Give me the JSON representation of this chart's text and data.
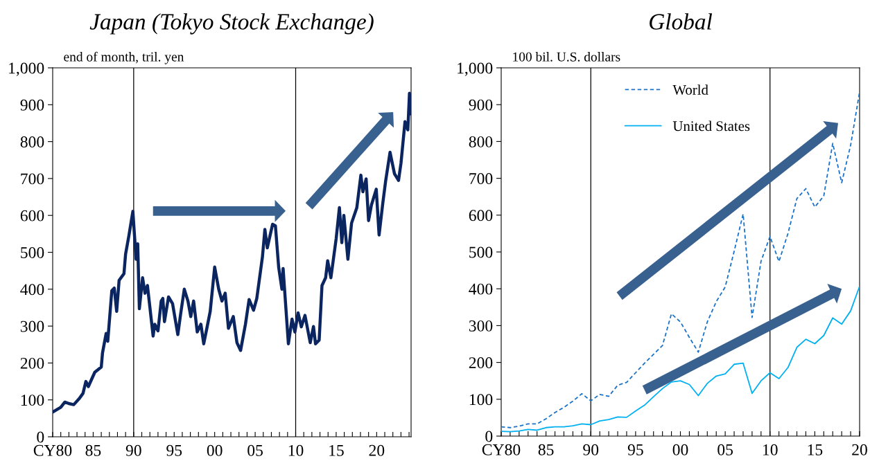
{
  "chart_data": [
    {
      "type": "line",
      "title": "Japan (Tokyo Stock Exchange)",
      "ylabel": "end of month, tril. yen",
      "series": [
        {
          "color": "#0b2560",
          "x": [
            1980.0,
            1981.0,
            1981.5,
            1982.0,
            1982.6,
            1983.3,
            1983.75,
            1984.1,
            1984.4,
            1985.2,
            1986.0,
            1986.15,
            1986.6,
            1986.8,
            1987.3,
            1987.6,
            1987.9,
            1988.2,
            1988.8,
            1989.0,
            1989.4,
            1989.9,
            1990.3,
            1990.5,
            1990.7,
            1991.1,
            1991.4,
            1991.7,
            1992.4,
            1992.6,
            1993.0,
            1993.4,
            1993.6,
            1993.8,
            1994.3,
            1994.8,
            1995.45,
            1995.8,
            1996.25,
            1996.7,
            1997.05,
            1997.4,
            1997.85,
            1998.3,
            1998.65,
            1998.97,
            1999.45,
            2000.0,
            2000.5,
            2000.9,
            2001.3,
            2001.7,
            2002.3,
            2002.75,
            2003.2,
            2003.8,
            2004.25,
            2004.8,
            2005.2,
            2005.9,
            2006.2,
            2006.5,
            2007.15,
            2007.5,
            2007.9,
            2008.3,
            2008.45,
            2009.1,
            2009.55,
            2009.9,
            2010.3,
            2010.7,
            2011.15,
            2011.8,
            2012.2,
            2012.45,
            2012.9,
            2013.25,
            2013.7,
            2013.95,
            2014.35,
            2015.0,
            2015.4,
            2015.7,
            2015.95,
            2016.45,
            2016.9,
            2017.55,
            2018.05,
            2018.3,
            2018.7,
            2019.0,
            2019.35,
            2019.95,
            2020.3,
            2020.75,
            2021.1,
            2021.65,
            2022.2,
            2022.7,
            2023.0,
            2023.5,
            2023.85,
            2024.05,
            2024.15
          ],
          "values": [
            67,
            80,
            94,
            90,
            87,
            104,
            118,
            150,
            136,
            175,
            189,
            227,
            280,
            259,
            396,
            403,
            340,
            424,
            442,
            495,
            544,
            611,
            481,
            523,
            347,
            431,
            389,
            410,
            273,
            305,
            287,
            368,
            375,
            312,
            379,
            361,
            277,
            333,
            400,
            368,
            326,
            368,
            284,
            305,
            252,
            287,
            340,
            460,
            400,
            368,
            389,
            294,
            326,
            255,
            234,
            305,
            372,
            343,
            375,
            488,
            562,
            512,
            576,
            572,
            460,
            400,
            456,
            252,
            319,
            284,
            336,
            298,
            329,
            255,
            299,
            252,
            262,
            410,
            431,
            477,
            431,
            537,
            621,
            526,
            600,
            481,
            579,
            621,
            709,
            664,
            699,
            586,
            628,
            671,
            547,
            632,
            692,
            771,
            713,
            695,
            741,
            854,
            832,
            931,
            875
          ]
        }
      ],
      "xlim": [
        1980,
        2024.25
      ],
      "xticks": [
        {
          "value": 1980,
          "label": "CY80"
        },
        {
          "value": 1981,
          "label": null
        },
        {
          "value": 1982,
          "label": null
        },
        {
          "value": 1983,
          "label": null
        },
        {
          "value": 1984,
          "label": null
        },
        {
          "value": 1985,
          "label": "85"
        },
        {
          "value": 1986,
          "label": null
        },
        {
          "value": 1987,
          "label": null
        },
        {
          "value": 1988,
          "label": null
        },
        {
          "value": 1989,
          "label": null
        },
        {
          "value": 1990,
          "label": "90"
        },
        {
          "value": 1991,
          "label": null
        },
        {
          "value": 1992,
          "label": null
        },
        {
          "value": 1993,
          "label": null
        },
        {
          "value": 1994,
          "label": null
        },
        {
          "value": 1995,
          "label": "95"
        },
        {
          "value": 1996,
          "label": null
        },
        {
          "value": 1997,
          "label": null
        },
        {
          "value": 1998,
          "label": null
        },
        {
          "value": 1999,
          "label": null
        },
        {
          "value": 2000,
          "label": "00"
        },
        {
          "value": 2001,
          "label": null
        },
        {
          "value": 2002,
          "label": null
        },
        {
          "value": 2003,
          "label": null
        },
        {
          "value": 2004,
          "label": null
        },
        {
          "value": 2005,
          "label": "05"
        },
        {
          "value": 2006,
          "label": null
        },
        {
          "value": 2007,
          "label": null
        },
        {
          "value": 2008,
          "label": null
        },
        {
          "value": 2009,
          "label": null
        },
        {
          "value": 2010,
          "label": "10"
        },
        {
          "value": 2011,
          "label": null
        },
        {
          "value": 2012,
          "label": null
        },
        {
          "value": 2013,
          "label": null
        },
        {
          "value": 2014,
          "label": null
        },
        {
          "value": 2015,
          "label": "15"
        },
        {
          "value": 2016,
          "label": null
        },
        {
          "value": 2017,
          "label": null
        },
        {
          "value": 2018,
          "label": null
        },
        {
          "value": 2019,
          "label": null
        },
        {
          "value": 2020,
          "label": "20"
        },
        {
          "value": 2021,
          "label": null
        },
        {
          "value": 2022,
          "label": null
        },
        {
          "value": 2023,
          "label": null
        },
        {
          "value": 2024,
          "label": null
        }
      ],
      "ylim": [
        0,
        1000
      ],
      "yticks": [
        0,
        100,
        200,
        300,
        400,
        500,
        600,
        700,
        800,
        900,
        {
          "value": 1000,
          "label": "1,000"
        }
      ],
      "ref_lines": [
        {
          "axis": "x",
          "value": 1990,
          "color": "#000000"
        },
        {
          "axis": "x",
          "value": 2010,
          "color": "#000000"
        }
      ],
      "grid": false,
      "legend": false,
      "line_style": "solid",
      "marker": "none"
    },
    {
      "type": "line",
      "title": "Global",
      "ylabel": "100 bil. U.S. dollars",
      "x": [
        1980,
        1981,
        1982,
        1983,
        1984,
        1985,
        1986,
        1987,
        1988,
        1989,
        1990,
        1991,
        1992,
        1993,
        1994,
        1995,
        1996,
        1997,
        1998,
        1999,
        2000,
        2001,
        2002,
        2003,
        2004,
        2005,
        2006,
        2007,
        2008,
        2009,
        2010,
        2011,
        2012,
        2013,
        2014,
        2015,
        2016,
        2017,
        2018,
        2019,
        2020
      ],
      "series": [
        {
          "name": "World",
          "color": "#1a73c8",
          "line_style": "dashed",
          "values": [
            25,
            23,
            27,
            33,
            33,
            47,
            64,
            78,
            95,
            115,
            96,
            113,
            108,
            138,
            146,
            172,
            198,
            222,
            246,
            332,
            310,
            268,
            228,
            310,
            365,
            405,
            502,
            603,
            322,
            475,
            542,
            474,
            550,
            645,
            672,
            622,
            652,
            795,
            688,
            790,
            935
          ]
        },
        {
          "name": "United States",
          "color": "#00b0f0",
          "line_style": "solid",
          "values": [
            13,
            12,
            14,
            18,
            16,
            23,
            25,
            25,
            28,
            33,
            31,
            41,
            45,
            52,
            51,
            68,
            84,
            107,
            129,
            147,
            150,
            140,
            110,
            143,
            163,
            169,
            195,
            198,
            116,
            150,
            172,
            156,
            186,
            241,
            263,
            251,
            273,
            321,
            304,
            340,
            407
          ]
        }
      ],
      "xlim": [
        1980,
        2020
      ],
      "xticks": [
        {
          "value": 1980,
          "label": "CY80"
        },
        {
          "value": 1981,
          "label": null
        },
        {
          "value": 1982,
          "label": null
        },
        {
          "value": 1983,
          "label": null
        },
        {
          "value": 1984,
          "label": null
        },
        {
          "value": 1985,
          "label": "85"
        },
        {
          "value": 1986,
          "label": null
        },
        {
          "value": 1987,
          "label": null
        },
        {
          "value": 1988,
          "label": null
        },
        {
          "value": 1989,
          "label": null
        },
        {
          "value": 1990,
          "label": "90"
        },
        {
          "value": 1991,
          "label": null
        },
        {
          "value": 1992,
          "label": null
        },
        {
          "value": 1993,
          "label": null
        },
        {
          "value": 1994,
          "label": null
        },
        {
          "value": 1995,
          "label": "95"
        },
        {
          "value": 1996,
          "label": null
        },
        {
          "value": 1997,
          "label": null
        },
        {
          "value": 1998,
          "label": null
        },
        {
          "value": 1999,
          "label": null
        },
        {
          "value": 2000,
          "label": "00"
        },
        {
          "value": 2001,
          "label": null
        },
        {
          "value": 2002,
          "label": null
        },
        {
          "value": 2003,
          "label": null
        },
        {
          "value": 2004,
          "label": null
        },
        {
          "value": 2005,
          "label": "05"
        },
        {
          "value": 2006,
          "label": null
        },
        {
          "value": 2007,
          "label": null
        },
        {
          "value": 2008,
          "label": null
        },
        {
          "value": 2009,
          "label": null
        },
        {
          "value": 2010,
          "label": "10"
        },
        {
          "value": 2011,
          "label": null
        },
        {
          "value": 2012,
          "label": null
        },
        {
          "value": 2013,
          "label": null
        },
        {
          "value": 2014,
          "label": null
        },
        {
          "value": 2015,
          "label": "15"
        },
        {
          "value": 2016,
          "label": null
        },
        {
          "value": 2017,
          "label": null
        },
        {
          "value": 2018,
          "label": null
        },
        {
          "value": 2019,
          "label": null
        },
        {
          "value": 2020,
          "label": "20"
        }
      ],
      "ylim": [
        0,
        1000
      ],
      "yticks": [
        0,
        100,
        200,
        300,
        400,
        500,
        600,
        700,
        800,
        900,
        {
          "value": 1000,
          "label": "1,000"
        }
      ],
      "ref_lines": [
        {
          "axis": "x",
          "value": 1990,
          "color": "#000000"
        },
        {
          "axis": "x",
          "value": 2010,
          "color": "#000000"
        }
      ],
      "grid": false,
      "legend": "top",
      "marker": "none"
    }
  ]
}
